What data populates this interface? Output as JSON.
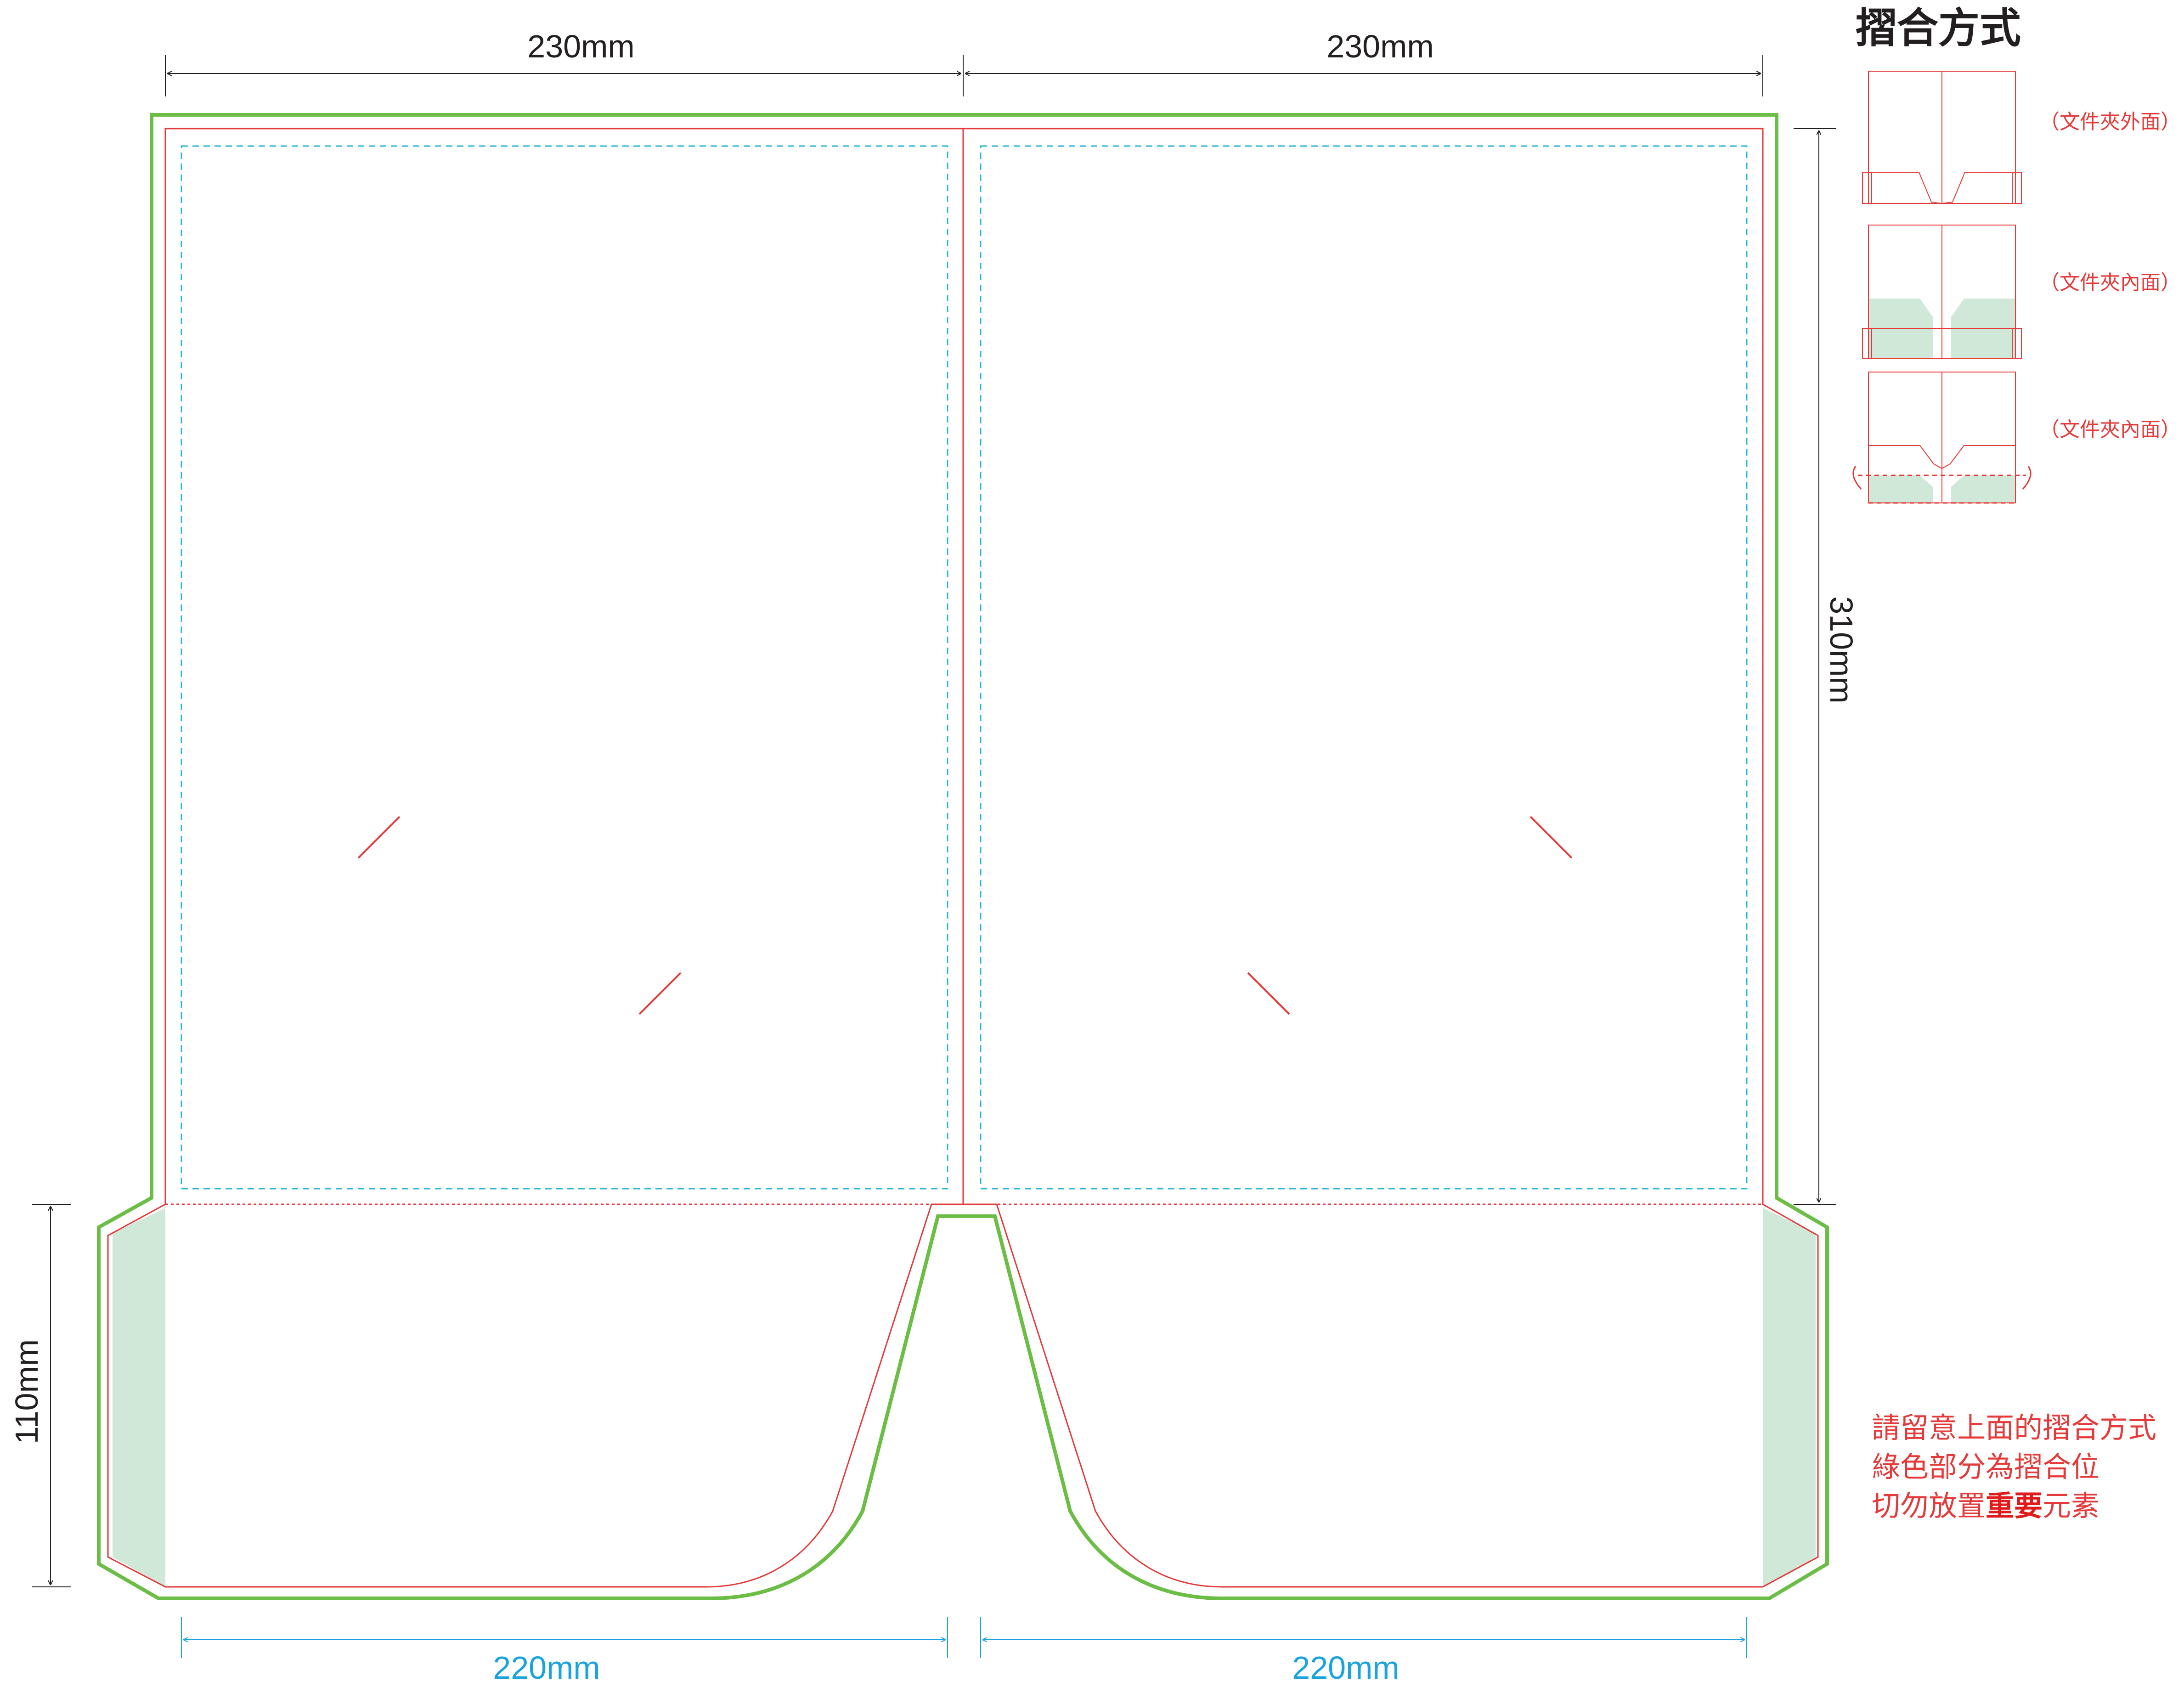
{
  "dimensions": {
    "top_left_width": "230mm",
    "top_right_width": "230mm",
    "right_height": "310mm",
    "left_pocket_height": "110mm",
    "bottom_left_width": "220mm",
    "bottom_right_width": "220mm"
  },
  "fold_guide": {
    "title": "摺合方式",
    "steps": [
      {
        "label": "（文件夾外面）"
      },
      {
        "label": "（文件夾內面）"
      },
      {
        "label": "（文件夾內面）"
      }
    ]
  },
  "notes": {
    "line1": "請留意上面的摺合方式",
    "line2": "綠色部分為摺合位",
    "line3_prefix": "切勿放置",
    "line3_emphasis": "重要",
    "line3_suffix": "元素"
  },
  "colors": {
    "outer_bleed": "#6bbd45",
    "trim_line": "#e53a3a",
    "safe_zone": "#29b6d9",
    "fold_area": "#cfe8d8",
    "dimension_line": "#231f20",
    "dimension_blue": "#1aa3dd"
  }
}
